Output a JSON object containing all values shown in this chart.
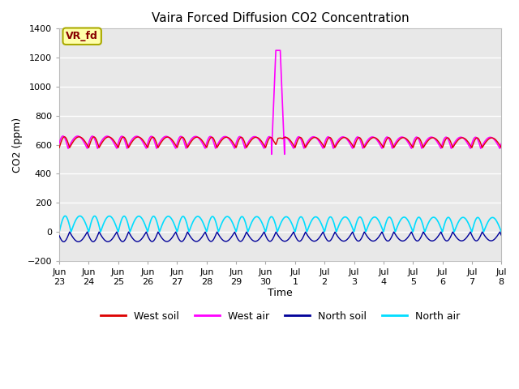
{
  "title": "Vaira Forced Diffusion CO2 Concentration",
  "xlabel": "Time",
  "ylabel": "CO2 (ppm)",
  "ylim": [
    -200,
    1400
  ],
  "yticks": [
    -200,
    0,
    200,
    400,
    600,
    800,
    1000,
    1200,
    1400
  ],
  "xlim": [
    0,
    15
  ],
  "background_color": "#e8e8e8",
  "legend_entries": [
    "West soil",
    "West air",
    "North soil",
    "North air"
  ],
  "legend_colors": [
    "#dd0000",
    "#ff00ff",
    "#000099",
    "#00ddff"
  ],
  "annotation_text": "VR_fd",
  "annotation_color": "#880000",
  "annotation_bg": "#ffffaa",
  "west_soil_base": 580,
  "west_soil_amp_hi": 75,
  "west_soil_amp_lo": 80,
  "west_air_base": 575,
  "west_air_amp_hi": 85,
  "west_air_amp_lo": 75,
  "north_soil_amp": 80,
  "north_air_amp_hi": 110,
  "north_air_amp_lo": 100,
  "spike_day": 7.42,
  "spike_peak": 1250,
  "spike_base": 510
}
